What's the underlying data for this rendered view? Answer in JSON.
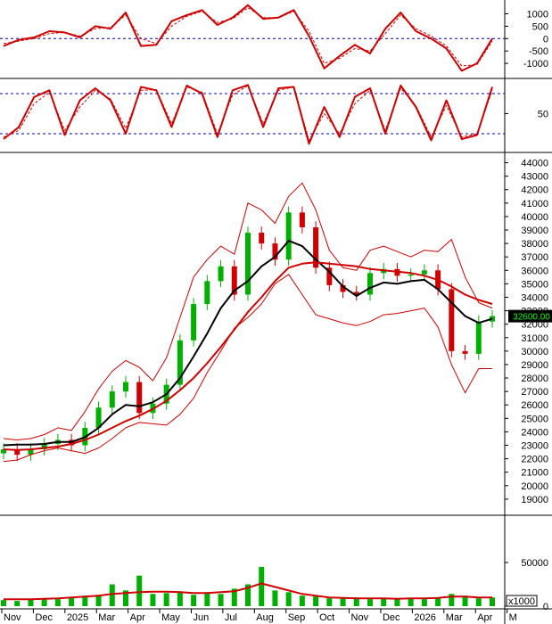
{
  "chart_data": [
    {
      "type": "line",
      "panel": "macd",
      "y_ticks": [
        1000,
        500,
        0,
        -500,
        -1000
      ],
      "y_tick_labels": [
        "1000",
        "500",
        "0",
        "-500",
        "-1000"
      ],
      "ylim": [
        -1500,
        1450
      ],
      "reference_lines": [
        0
      ],
      "series": [
        {
          "color": "#d00000",
          "style": "solid",
          "values": [
            -300,
            -50,
            50,
            300,
            250,
            50,
            500,
            400,
            1050,
            -300,
            -250,
            700,
            950,
            1150,
            550,
            850,
            1350,
            800,
            850,
            1150,
            100,
            -1200,
            -700,
            -250,
            -600,
            400,
            1050,
            300,
            0,
            -400,
            -1300,
            -1000,
            0
          ]
        },
        {
          "color": "#d00000",
          "style": "dashed",
          "values": [
            -200,
            -100,
            0,
            200,
            250,
            100,
            400,
            450,
            950,
            0,
            -200,
            500,
            900,
            1100,
            650,
            800,
            1250,
            850,
            850,
            1100,
            300,
            -1000,
            -800,
            -400,
            -500,
            200,
            950,
            400,
            100,
            -300,
            -1100,
            -1050,
            -100
          ]
        }
      ]
    },
    {
      "type": "line",
      "panel": "stochastic",
      "y_ticks": [
        50
      ],
      "y_tick_labels": [
        "50"
      ],
      "ylim": [
        0,
        100
      ],
      "reference_lines": [
        80,
        20
      ],
      "series": [
        {
          "color": "#d00000",
          "style": "solid",
          "values": [
            12,
            30,
            75,
            85,
            18,
            70,
            88,
            70,
            20,
            90,
            85,
            30,
            92,
            80,
            15,
            85,
            93,
            30,
            88,
            90,
            5,
            60,
            15,
            75,
            88,
            20,
            92,
            60,
            10,
            70,
            12,
            18,
            90
          ]
        },
        {
          "color": "#d00000",
          "style": "dashed",
          "values": [
            15,
            25,
            65,
            82,
            25,
            60,
            85,
            72,
            28,
            85,
            86,
            35,
            90,
            82,
            20,
            78,
            92,
            35,
            85,
            90,
            10,
            50,
            20,
            65,
            85,
            25,
            88,
            62,
            15,
            62,
            15,
            20,
            85
          ]
        }
      ]
    },
    {
      "type": "candlestick",
      "panel": "price",
      "x_labels": [
        "Nov",
        "Dec",
        "2025",
        "Mar",
        "Apr",
        "May",
        "Jun",
        "Jul",
        "Aug",
        "Sep",
        "Oct",
        "Nov",
        "Dec",
        "2026",
        "Mar",
        "Apr",
        "M"
      ],
      "y_ticks": [
        44000,
        43000,
        42000,
        41000,
        40000,
        39000,
        38000,
        37000,
        36000,
        35000,
        34000,
        33000,
        32000,
        31000,
        30000,
        29000,
        28000,
        27000,
        26000,
        25000,
        24000,
        23000,
        22000,
        21000,
        20000,
        19000
      ],
      "y_tick_labels": [
        "44000",
        "43000",
        "42000",
        "41000",
        "40000",
        "39000",
        "38000",
        "37000",
        "36000",
        "35000",
        "34000",
        "33000",
        "32000",
        "31000",
        "30000",
        "29000",
        "28000",
        "27000",
        "26000",
        "25000",
        "24000",
        "23000",
        "22000",
        "21000",
        "20000",
        "19000"
      ],
      "ylim": [
        18000,
        44500
      ],
      "last_price_label": "32600.00",
      "close": [
        22700,
        22300,
        22700,
        23100,
        23400,
        23000,
        24300,
        25800,
        27000,
        27700,
        25400,
        26100,
        27500,
        30800,
        33500,
        35200,
        36300,
        34200,
        38800,
        38000,
        36800,
        40300,
        39200,
        36200,
        34900,
        34400,
        34200,
        35800,
        36100,
        35600,
        35700,
        36000,
        34600,
        30000,
        29800,
        32200,
        32600
      ],
      "bullish_color": "#00b000",
      "bearish_color": "#d00000",
      "overlays": [
        {
          "name": "",
          "color": "#000000",
          "values": [
            23000,
            23050,
            23050,
            23100,
            23250,
            23250,
            23600,
            24300,
            25300,
            26000,
            25900,
            26200,
            26800,
            28000,
            29600,
            31300,
            33200,
            34500,
            35200,
            36300,
            37000,
            38200,
            37800,
            36800,
            35900,
            34800,
            34100,
            34700,
            35100,
            35000,
            35200,
            35300,
            34600,
            33600,
            32600,
            32100,
            32400
          ]
        },
        {
          "name": "",
          "color": "#d00000",
          "values": [
            22700,
            22650,
            22700,
            22800,
            22900,
            23100,
            23400,
            23800,
            24300,
            24800,
            25200,
            25700,
            26300,
            27100,
            28000,
            29100,
            30300,
            31600,
            32900,
            34000,
            35200,
            36200,
            36500,
            36600,
            36500,
            36400,
            36300,
            36100,
            36000,
            35900,
            35800,
            35600,
            35300,
            34800,
            34200,
            33800,
            33500
          ]
        },
        {
          "name": "",
          "color": "#d00000",
          "thin": true,
          "values": [
            23500,
            23400,
            23500,
            23800,
            24300,
            24100,
            25500,
            27200,
            28500,
            29300,
            28800,
            27800,
            29500,
            32500,
            35500,
            36800,
            37800,
            37200,
            41000,
            40500,
            39500,
            41500,
            42500,
            40500,
            37500,
            36200,
            36000,
            37500,
            37800,
            37400,
            37000,
            37500,
            37400,
            38300,
            35500,
            33600,
            33200
          ]
        },
        {
          "name": "",
          "color": "#d00000",
          "thin": true,
          "values": [
            21800,
            21900,
            22300,
            22600,
            22800,
            22600,
            22400,
            22800,
            23500,
            24300,
            24700,
            24600,
            24500,
            25300,
            26500,
            28400,
            30000,
            31700,
            32500,
            33500,
            35000,
            35700,
            34200,
            32700,
            32400,
            32100,
            31900,
            32200,
            32700,
            32800,
            33000,
            33200,
            31800,
            29000,
            26900,
            28700,
            28700
          ]
        }
      ]
    },
    {
      "type": "bar",
      "panel": "volume",
      "unit_label": "x1000",
      "y_ticks": [
        50000,
        0
      ],
      "y_tick_labels": [
        "50000",
        "0"
      ],
      "ylim": [
        0,
        100000
      ],
      "bar_color": "#00b000",
      "values": [
        7000,
        6000,
        8000,
        9000,
        8000,
        10000,
        12000,
        13000,
        25000,
        18000,
        35000,
        14000,
        15000,
        17000,
        13000,
        16000,
        14000,
        20000,
        25000,
        45000,
        18000,
        16000,
        12000,
        11000,
        9000,
        9000,
        10000,
        8000,
        9000,
        8000,
        9000,
        8000,
        10000,
        14000,
        12000,
        9000,
        10000
      ],
      "moving_average": {
        "color": "#d00000",
        "values": [
          8000,
          8000,
          8000,
          8500,
          9000,
          10000,
          11000,
          12000,
          14000,
          15000,
          16000,
          16500,
          16500,
          16000,
          15000,
          15000,
          16000,
          17000,
          21000,
          26000,
          22000,
          18000,
          14000,
          12000,
          10000,
          9500,
          9000,
          9000,
          9000,
          8500,
          9000,
          9000,
          9500,
          11000,
          11000,
          10000,
          10000
        ]
      }
    }
  ]
}
